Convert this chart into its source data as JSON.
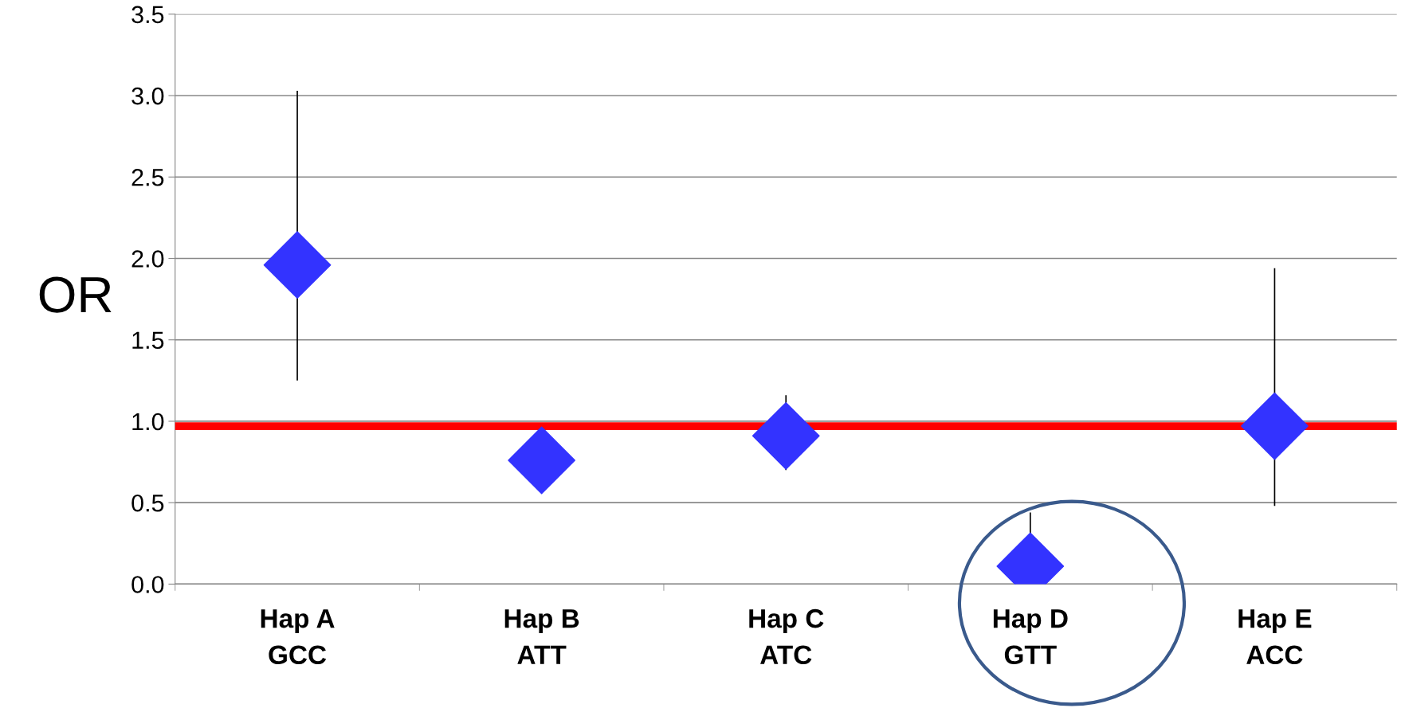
{
  "chart_data": {
    "type": "scatter",
    "ylabel": "OR",
    "categories": [
      "Hap A\nGCC",
      "Hap B\nATT",
      "Hap C\nATC",
      "Hap D\nGTT",
      "Hap E\nACC"
    ],
    "series": [
      {
        "color": "#3333ff",
        "values": [
          1.96,
          0.76,
          0.91,
          0.11,
          0.97
        ],
        "errors": [
          [
            1.25,
            3.03
          ],
          null,
          [
            0.7,
            1.16
          ],
          [
            0.11,
            0.44
          ],
          [
            0.48,
            1.94
          ]
        ]
      }
    ],
    "marker": "diamond",
    "ylim": [
      0,
      3.5
    ],
    "yticks": [
      {
        "value": 0,
        "label": "0.0"
      },
      0.5,
      {
        "value": 1,
        "label": "1.0"
      },
      1.5,
      {
        "value": 2,
        "label": "2.0"
      },
      2.5,
      {
        "value": 3,
        "label": "3.0"
      },
      3.5
    ],
    "grid": "y",
    "ref_lines": [
      {
        "axis": "y",
        "value": 0.97,
        "color": "#ff0000"
      }
    ]
  }
}
